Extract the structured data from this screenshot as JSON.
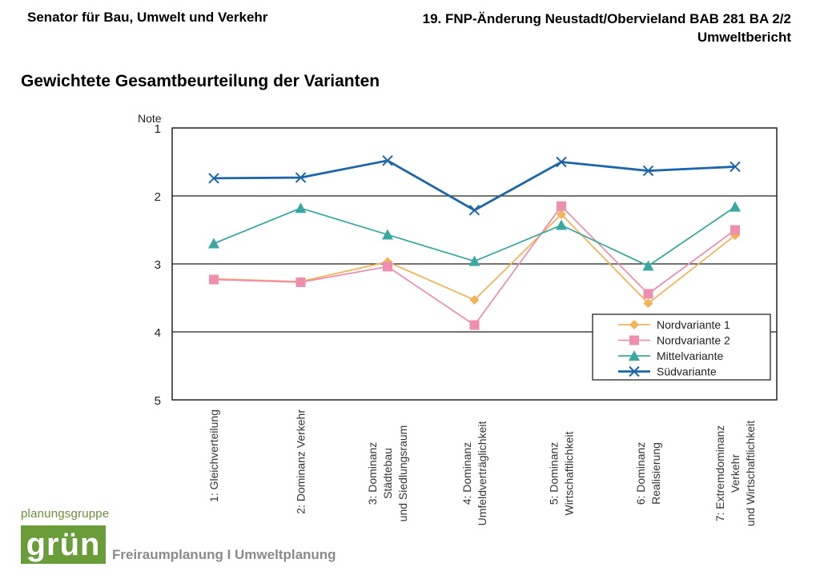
{
  "header": {
    "left": "Senator für Bau, Umwelt und Verkehr",
    "right_line1": "19. FNP-Änderung Neustadt/Obervieland BAB 281 BA 2/2",
    "right_line2": "Umweltbericht"
  },
  "page_title": "Gewichtete Gesamtbeurteilung der Varianten",
  "chart_data": {
    "type": "line",
    "ylabel": "Note",
    "ylim": [
      1,
      5
    ],
    "y_inverted": true,
    "yticks": [
      "1",
      "2",
      "3",
      "4",
      "5"
    ],
    "categories": [
      [
        "1: Gleichverteilung"
      ],
      [
        "2: Dominanz Verkehr"
      ],
      [
        "3: Dominanz",
        "Städtebau",
        "und Siedlungsraum"
      ],
      [
        "4: Dominanz",
        "Umfeldverträglichkeit"
      ],
      [
        "5: Dominanz",
        "Wirtschaftlichkeit"
      ],
      [
        "6: Dominanz",
        "Realisierung"
      ],
      [
        "7: Extremdominanz",
        "Verkehr",
        "und Wirtschaftlichkeit"
      ]
    ],
    "legend_position": "bottom-right",
    "series": [
      {
        "name": "Nordvariante 1",
        "color": "#f2b45a",
        "marker": "diamond",
        "values": [
          3.22,
          3.26,
          2.97,
          3.53,
          2.27,
          3.58,
          2.58
        ]
      },
      {
        "name": "Nordvariante 2",
        "color": "#ee8fb0",
        "marker": "square",
        "values": [
          3.23,
          3.27,
          3.04,
          3.9,
          2.15,
          3.44,
          2.5
        ]
      },
      {
        "name": "Mittelvariante",
        "color": "#3aa8a0",
        "marker": "triangle",
        "values": [
          2.7,
          2.18,
          2.57,
          2.96,
          2.43,
          3.03,
          2.16
        ]
      },
      {
        "name": "Südvariante",
        "color": "#1c66a8",
        "marker": "x",
        "values": [
          1.74,
          1.73,
          1.48,
          2.21,
          1.5,
          1.63,
          1.57
        ]
      }
    ]
  },
  "logo": {
    "top": "planungsgruppe",
    "main": "grün",
    "sub": "Freiraumplanung I Umweltplanung",
    "color": "#6a9c3a"
  }
}
